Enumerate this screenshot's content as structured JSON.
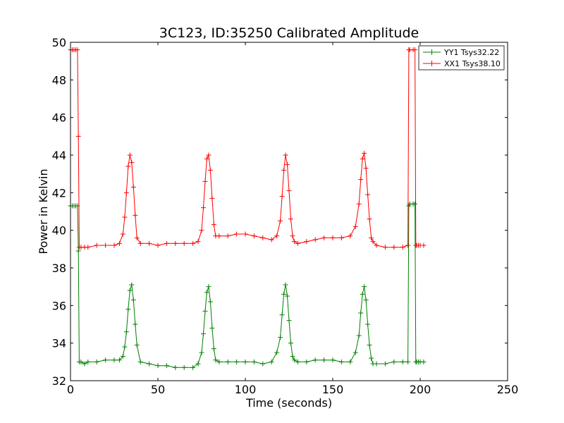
{
  "chart_data": {
    "type": "line",
    "title": "3C123, ID:35250 Calibrated Amplitude",
    "xlabel": "Time (seconds)",
    "ylabel": "Power in Kelvin",
    "xlim": [
      0,
      250
    ],
    "ylim": [
      32,
      50
    ],
    "x_ticks": [
      "0",
      "50",
      "100",
      "150",
      "200",
      "250"
    ],
    "y_ticks": [
      "32",
      "34",
      "36",
      "38",
      "40",
      "42",
      "44",
      "46",
      "48",
      "50"
    ],
    "grid": false,
    "legend_position": "top-right",
    "marker": "+",
    "series": [
      {
        "name": "YY1 Tsys32.22",
        "color": "#008000",
        "x": [
          0,
          1,
          2,
          3,
          4,
          4.5,
          5,
          6,
          8,
          10,
          15,
          20,
          25,
          28,
          30,
          31,
          32,
          33,
          34,
          35,
          36,
          37,
          38,
          40,
          45,
          50,
          55,
          60,
          65,
          70,
          73,
          75,
          76,
          77,
          78,
          79,
          80,
          81,
          82,
          83,
          85,
          90,
          95,
          100,
          105,
          110,
          115,
          118,
          120,
          121,
          122,
          123,
          124,
          125,
          126,
          127,
          128,
          130,
          135,
          140,
          145,
          150,
          155,
          160,
          163,
          165,
          166,
          167,
          168,
          169,
          170,
          171,
          172,
          173,
          175,
          180,
          185,
          190,
          193,
          193.5,
          194,
          196,
          197,
          197.5,
          198,
          199,
          200,
          202
        ],
        "y": [
          41.3,
          41.3,
          41.3,
          41.3,
          41.3,
          38.9,
          33.0,
          33.0,
          32.9,
          33.0,
          33.0,
          33.1,
          33.1,
          33.1,
          33.3,
          33.8,
          34.6,
          35.8,
          36.8,
          37.1,
          36.3,
          35.0,
          33.9,
          33.0,
          32.9,
          32.8,
          32.8,
          32.7,
          32.7,
          32.7,
          32.9,
          33.5,
          34.5,
          35.7,
          36.7,
          37.0,
          36.2,
          34.8,
          33.7,
          33.1,
          33.0,
          33.0,
          33.0,
          33.0,
          33.0,
          32.9,
          33.0,
          33.5,
          34.3,
          35.5,
          36.6,
          37.1,
          36.5,
          35.2,
          34.0,
          33.3,
          33.1,
          33.0,
          33.0,
          33.1,
          33.1,
          33.1,
          33.0,
          33.0,
          33.5,
          34.4,
          35.6,
          36.6,
          37.0,
          36.3,
          35.0,
          33.9,
          33.2,
          32.9,
          32.9,
          32.9,
          33.0,
          33.0,
          33.0,
          41.3,
          41.4,
          41.4,
          41.4,
          33.0,
          33.0,
          33.0,
          33.0,
          33.0
        ]
      },
      {
        "name": "XX1 Tsys38.10",
        "color": "#ff0000",
        "x": [
          0,
          1,
          2,
          3,
          4,
          4.5,
          5,
          6,
          8,
          10,
          15,
          20,
          25,
          28,
          30,
          31,
          32,
          33,
          34,
          35,
          36,
          37,
          38,
          40,
          45,
          50,
          55,
          60,
          65,
          70,
          73,
          75,
          76,
          77,
          78,
          79,
          80,
          81,
          82,
          83,
          85,
          90,
          95,
          100,
          105,
          110,
          115,
          118,
          120,
          121,
          122,
          123,
          124,
          125,
          126,
          127,
          128,
          130,
          135,
          140,
          145,
          150,
          155,
          160,
          163,
          165,
          166,
          167,
          168,
          169,
          170,
          171,
          172,
          173,
          175,
          180,
          185,
          190,
          193,
          193.5,
          194,
          196,
          197,
          197.5,
          198,
          199,
          200,
          202
        ],
        "y": [
          49.6,
          49.6,
          49.6,
          49.6,
          49.6,
          45.0,
          39.1,
          39.1,
          39.1,
          39.1,
          39.2,
          39.2,
          39.2,
          39.3,
          39.8,
          40.7,
          42.0,
          43.4,
          44.0,
          43.6,
          42.3,
          40.8,
          39.6,
          39.3,
          39.3,
          39.2,
          39.3,
          39.3,
          39.3,
          39.3,
          39.4,
          40.0,
          41.2,
          42.6,
          43.8,
          44.0,
          43.2,
          41.7,
          40.3,
          39.7,
          39.7,
          39.7,
          39.8,
          39.8,
          39.7,
          39.6,
          39.5,
          39.7,
          40.5,
          41.8,
          43.2,
          44.0,
          43.5,
          42.1,
          40.6,
          39.7,
          39.4,
          39.3,
          39.4,
          39.5,
          39.6,
          39.6,
          39.6,
          39.7,
          40.2,
          41.4,
          42.7,
          43.8,
          44.1,
          43.3,
          41.9,
          40.6,
          39.6,
          39.4,
          39.2,
          39.1,
          39.1,
          39.1,
          39.2,
          49.6,
          49.6,
          49.6,
          49.6,
          39.2,
          39.2,
          39.2,
          39.2,
          39.2
        ]
      }
    ]
  }
}
